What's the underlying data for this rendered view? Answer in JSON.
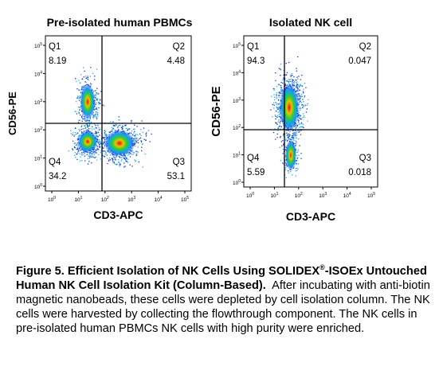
{
  "tick_base": "10",
  "panels": [
    {
      "title": "Pre-isolated human PBMCs",
      "xlabel": "CD3-APC",
      "ylabel": "CD56-PE",
      "tick_exponents": [
        0,
        1,
        2,
        3,
        4,
        5
      ],
      "quadrants": [
        {
          "label": "Q1",
          "value": 8.19
        },
        {
          "label": "Q2",
          "value": 4.48
        },
        {
          "label": "Q3",
          "value": 53.1
        },
        {
          "label": "Q4",
          "value": 34.2
        }
      ]
    },
    {
      "title": "Isolated NK cell",
      "xlabel": "CD3-APC",
      "ylabel": "CD56-PE",
      "tick_exponents": [
        0,
        1,
        2,
        3,
        4,
        5
      ],
      "quadrants": [
        {
          "label": "Q1",
          "value": 94.3
        },
        {
          "label": "Q2",
          "value": 0.047
        },
        {
          "label": "Q3",
          "value": 0.018
        },
        {
          "label": "Q4",
          "value": 5.59
        }
      ]
    }
  ],
  "caption": {
    "bold_start": "Figure 5. Efficient Isolation of NK Cells Using SOLIDEX",
    "bold_sup": "®",
    "bold_end": "-ISOEx Untouched Human NK Cell Isolation Kit (Column-Based).",
    "text": "After incubating with anti-biotin magnetic nanobeads, these cells were depleted by cell isolation column. The NK cells were harvested by collecting the flowthrough component. The NK cells in pre-isolated human PBMCs  NK cells with high purity were enriched."
  }
}
